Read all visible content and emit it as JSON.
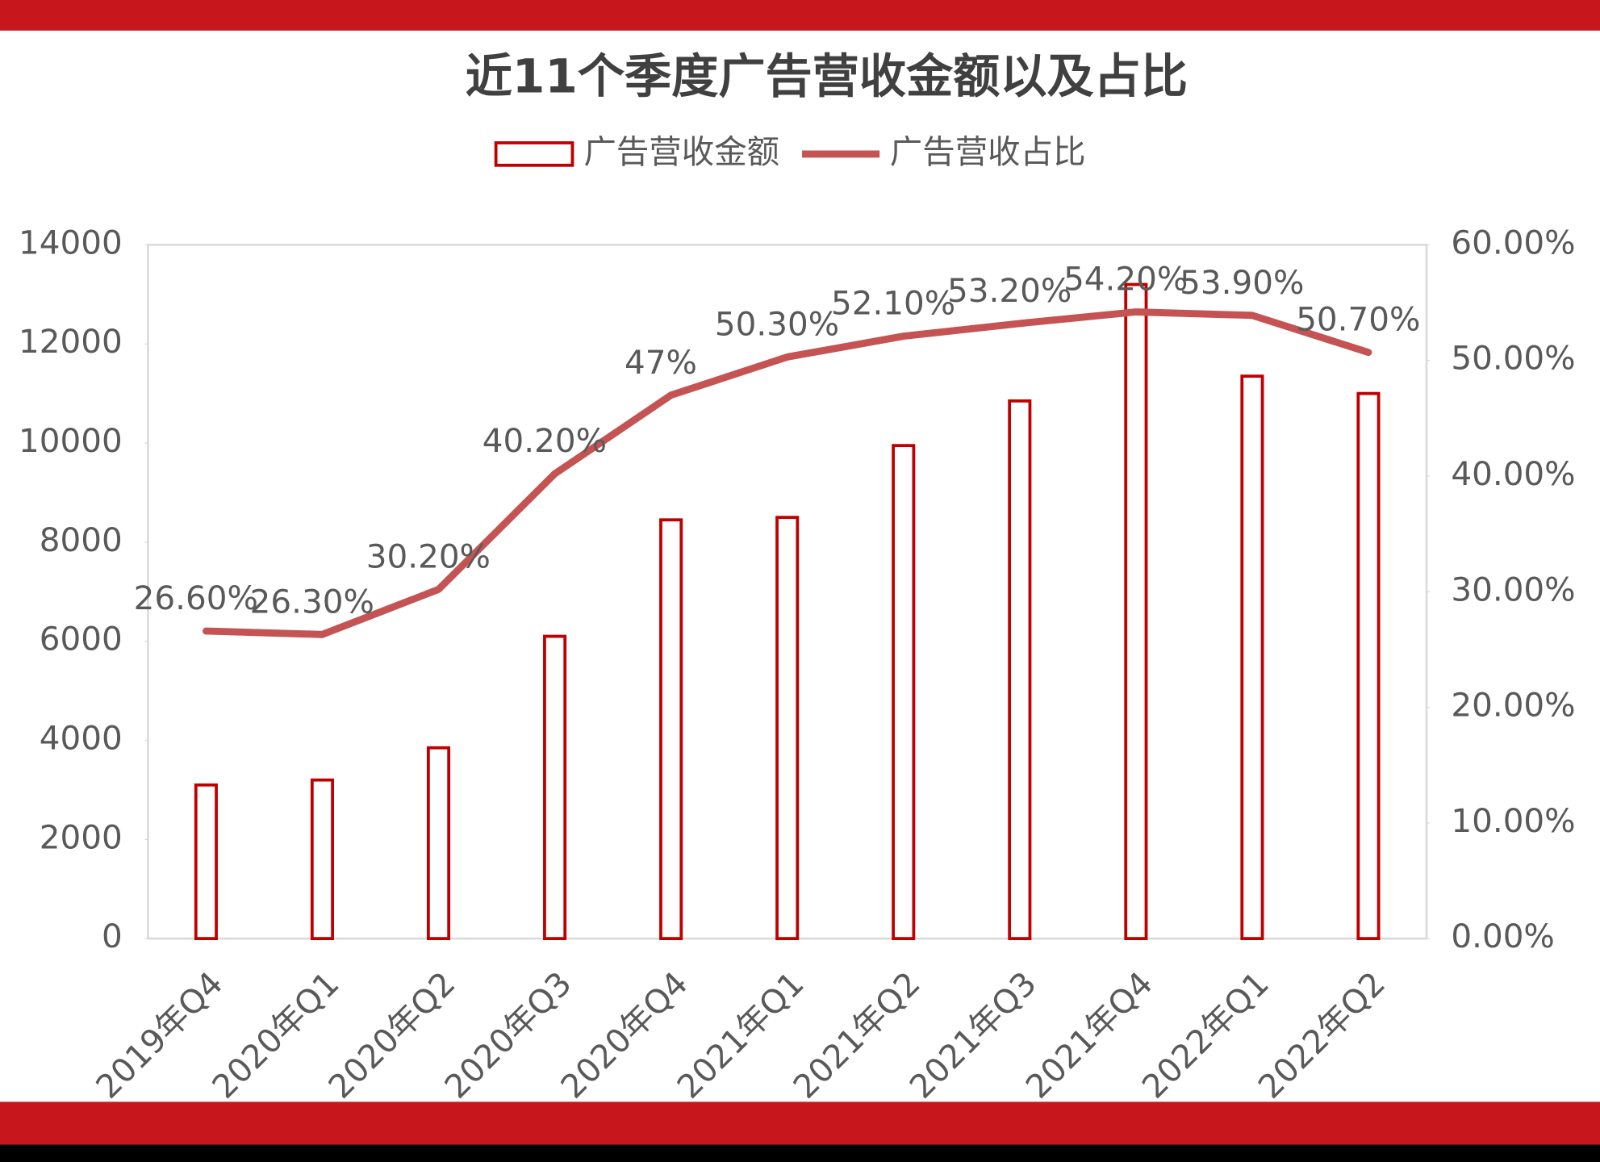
{
  "chart_data": {
    "type": "bar_line",
    "title": "近11个季度广告营收金额以及占比",
    "categories": [
      "2019年Q4",
      "2020年Q1",
      "2020年Q2",
      "2020年Q3",
      "2020年Q4",
      "2021年Q1",
      "2021年Q2",
      "2021年Q3",
      "2021年Q4",
      "2022年Q1",
      "2022年Q2"
    ],
    "series": [
      {
        "name": "广告营收金额",
        "color": "#c00000",
        "values": [
          3100,
          3200,
          3850,
          6100,
          8450,
          8500,
          9950,
          10850,
          13200,
          11350,
          11000
        ]
      },
      {
        "name": "广告营收占比",
        "color": "#c55353",
        "axis": "y2",
        "values": [
          26.6,
          26.3,
          30.2,
          40.2,
          47,
          50.3,
          52.1,
          53.2,
          54.2,
          53.9,
          50.7
        ],
        "value_labels": [
          "26.60%",
          "26.30%",
          "30.20%",
          "40.20%",
          "47%",
          "50.30%",
          "52.10%",
          "53.20%",
          "54.20%",
          "53.90%",
          "50.70%"
        ]
      }
    ],
    "ylim": [
      0,
      14000
    ],
    "yticks": [
      0,
      2000,
      4000,
      6000,
      8000,
      10000,
      12000,
      14000
    ],
    "y2lim": [
      0,
      60
    ],
    "y2ticks": [
      {
        "value": 0,
        "label": "0.00%"
      },
      {
        "value": 10,
        "label": "10.00%"
      },
      {
        "value": 20,
        "label": "20.00%"
      },
      {
        "value": 30,
        "label": "30.00%"
      },
      {
        "value": 40,
        "label": "40.00%"
      },
      {
        "value": 50,
        "label": "50.00%"
      },
      {
        "value": 60,
        "label": "60.00%"
      }
    ],
    "legend": "top"
  }
}
